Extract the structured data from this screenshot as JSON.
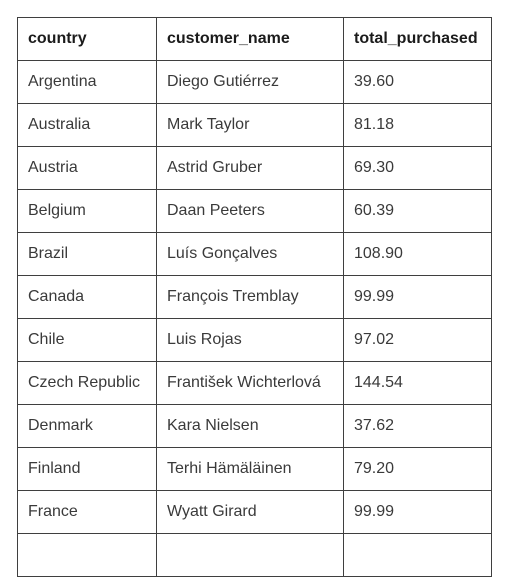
{
  "table": {
    "columns": [
      "country",
      "customer_name",
      "total_purchased"
    ],
    "rows": [
      [
        "Argentina",
        "Diego Gutiérrez",
        "39.60"
      ],
      [
        "Australia",
        "Mark Taylor",
        "81.18"
      ],
      [
        "Austria",
        "Astrid Gruber",
        "69.30"
      ],
      [
        "Belgium",
        "Daan Peeters",
        "60.39"
      ],
      [
        "Brazil",
        "Luís Gonçalves",
        "108.90"
      ],
      [
        "Canada",
        "François Tremblay",
        "99.99"
      ],
      [
        "Chile",
        "Luis Rojas",
        "97.02"
      ],
      [
        "Czech Republic",
        "František Wichterlová",
        "144.54"
      ],
      [
        "Denmark",
        "Kara Nielsen",
        "37.62"
      ],
      [
        "Finland",
        "Terhi Hämäläinen",
        "79.20"
      ],
      [
        "France",
        "Wyatt Girard",
        "99.99"
      ]
    ]
  }
}
